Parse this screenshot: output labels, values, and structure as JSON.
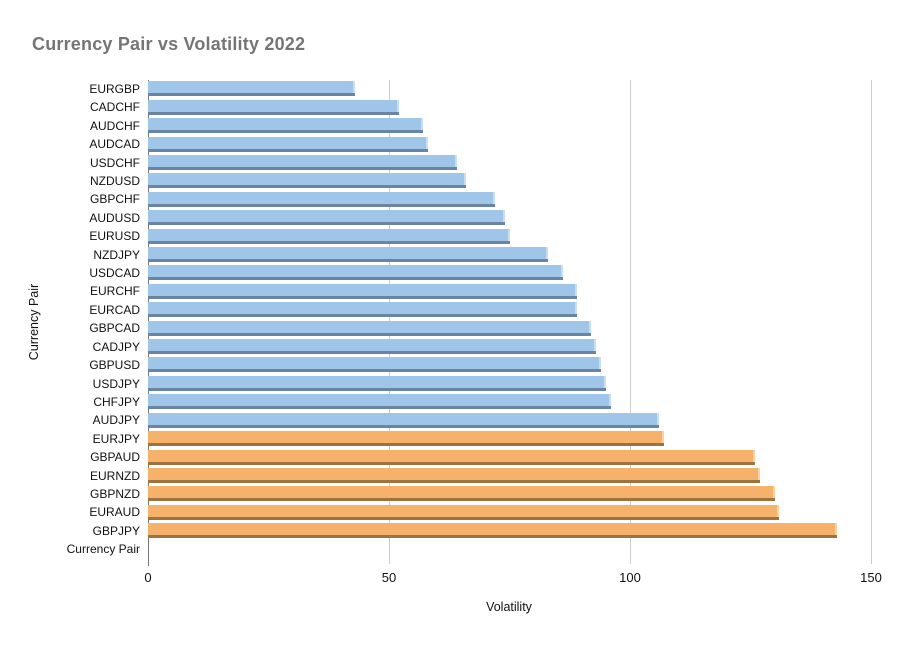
{
  "chart_data": {
    "type": "bar",
    "orientation": "horizontal",
    "title": "Currency Pair vs Volatility 2022",
    "xlabel": "Volatility",
    "ylabel": "Currency Pair",
    "xlim": [
      0,
      150
    ],
    "x_ticks": [
      0,
      50,
      100,
      150
    ],
    "grid": true,
    "legend_position": "none",
    "categories": [
      "EURGBP",
      "CADCHF",
      "AUDCHF",
      "AUDCAD",
      "USDCHF",
      "NZDUSD",
      "GBPCHF",
      "AUDUSD",
      "EURUSD",
      "NZDJPY",
      "USDCAD",
      "EURCHF",
      "EURCAD",
      "GBPCAD",
      "CADJPY",
      "GBPUSD",
      "USDJPY",
      "CHFJPY",
      "AUDJPY",
      "EURJPY",
      "GBPAUD",
      "EURNZD",
      "GBPNZD",
      "EURAUD",
      "GBPJPY",
      "Currency Pair"
    ],
    "values": [
      43,
      52,
      57,
      58,
      64,
      66,
      72,
      74,
      75,
      83,
      86,
      89,
      89,
      92,
      93,
      94,
      95,
      96,
      106,
      107,
      126,
      127,
      130,
      131,
      143,
      0
    ],
    "bar_groups": [
      "blue",
      "blue",
      "blue",
      "blue",
      "blue",
      "blue",
      "blue",
      "blue",
      "blue",
      "blue",
      "blue",
      "blue",
      "blue",
      "blue",
      "blue",
      "blue",
      "blue",
      "blue",
      "blue",
      "orange",
      "orange",
      "orange",
      "orange",
      "orange",
      "orange",
      "none"
    ],
    "colors": {
      "blue_fill": "#9fc5e8",
      "blue_shadow": "#6b84a2",
      "orange_fill": "#f6b26b",
      "orange_shadow": "#9e7343",
      "gridline": "#cccccc",
      "axis_line": "#757575",
      "title_text": "#757575",
      "label_text": "#111111"
    }
  }
}
